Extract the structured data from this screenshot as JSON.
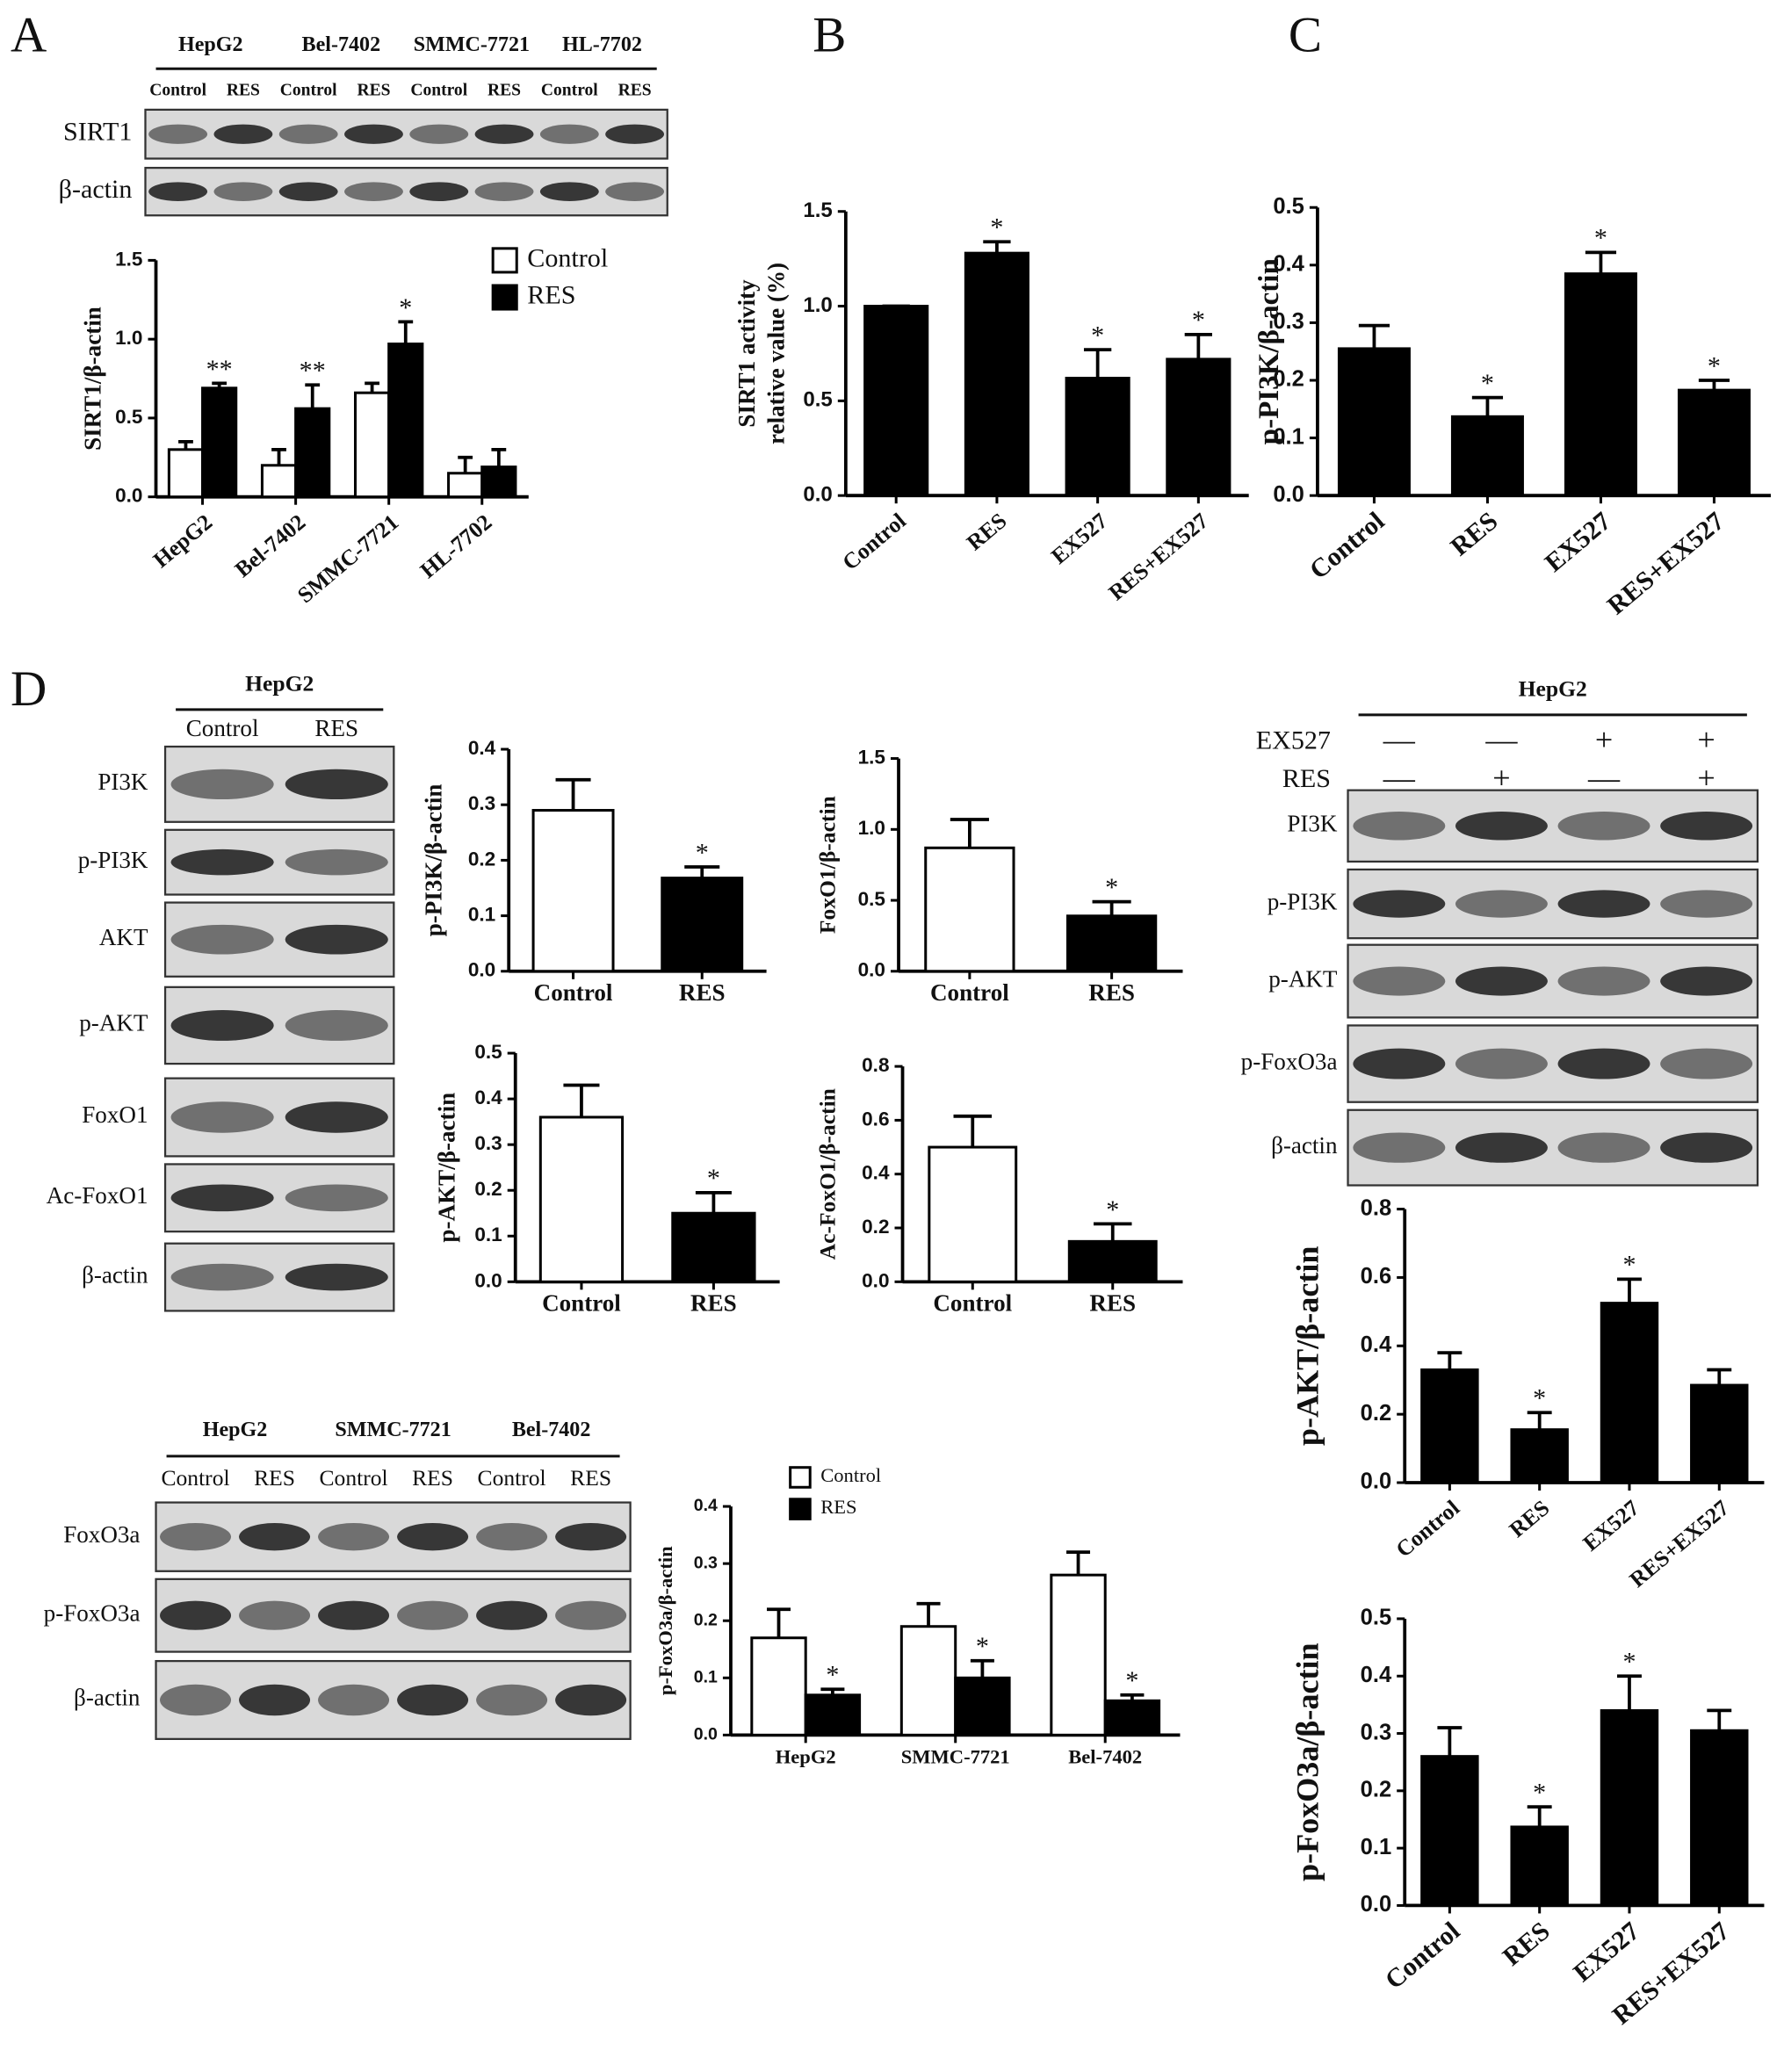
{
  "panels": [
    "A",
    "B",
    "C",
    "D"
  ],
  "blots": [
    {
      "groups": [
        "HepG2",
        "Bel-7402",
        "SMMC-7721",
        "HL-7702"
      ],
      "lanes": [
        "Control",
        "RES",
        "Control",
        "RES",
        "Control",
        "RES",
        "Control",
        "RES"
      ],
      "rows": [
        "SIRT1",
        "β-actin"
      ]
    },
    {
      "groups": [
        "HepG2"
      ],
      "lanes": [
        "Control",
        "RES"
      ],
      "rows": [
        "PI3K",
        "p-PI3K",
        "AKT",
        "p-AKT",
        "FoxO1",
        "Ac-FoxO1",
        "β-actin"
      ]
    },
    {
      "groups": [
        "HepG2",
        "SMMC-7721",
        "Bel-7402"
      ],
      "lanes": [
        "Control",
        "RES",
        "Control",
        "RES",
        "Control",
        "RES"
      ],
      "rows": [
        "FoxO3a",
        "p-FoxO3a",
        "β-actin"
      ]
    },
    {
      "groups": [
        "HepG2"
      ],
      "treatments": [
        {
          "name": "EX527",
          "signs": [
            "—",
            "—",
            "+",
            "+"
          ]
        },
        {
          "name": "RES",
          "signs": [
            "—",
            "+",
            "—",
            "+"
          ]
        }
      ],
      "rows": [
        "PI3K",
        "p-PI3K",
        "p-AKT",
        "p-FoxO3a",
        "β-actin"
      ]
    }
  ],
  "chart_data": [
    {
      "type": "grouped_bar",
      "y_label": "SIRT1/β-actin",
      "categories": [
        "HepG2",
        "Bel-7402",
        "SMMC-7721",
        "HL-7702"
      ],
      "series": [
        {
          "name": "Control",
          "color": "#ffffff",
          "values": [
            0.3,
            0.2,
            0.66,
            0.15
          ],
          "errors": [
            0.05,
            0.1,
            0.06,
            0.1
          ],
          "annotations": [
            null,
            null,
            null,
            null
          ]
        },
        {
          "name": "RES",
          "color": "#000000",
          "values": [
            0.69,
            0.56,
            0.97,
            0.19
          ],
          "errors": [
            0.03,
            0.15,
            0.14,
            0.11
          ],
          "annotations": [
            "**",
            "**",
            "*",
            null
          ]
        }
      ],
      "ylim": [
        0,
        1.5
      ],
      "yticks": [
        {
          "value": 0,
          "label": "0.0"
        },
        0.5,
        {
          "value": 1,
          "label": "1.0"
        },
        1.5
      ],
      "legend": "upper right"
    },
    {
      "type": "bar",
      "y_label": [
        "SIRT1 activity",
        "relative value (%)"
      ],
      "categories": [
        "Control",
        "RES",
        "EX527",
        "RES+EX527"
      ],
      "values": [
        1.0,
        1.28,
        0.62,
        0.72
      ],
      "errors": [
        0,
        0.06,
        0.15,
        0.13
      ],
      "annotations": [
        null,
        "*",
        "*",
        "*"
      ],
      "color": "#000000",
      "ylim": [
        0,
        1.5
      ],
      "yticks": [
        {
          "value": 0,
          "label": "0.0"
        },
        0.5,
        {
          "value": 1,
          "label": "1.0"
        },
        1.5
      ]
    },
    {
      "type": "bar",
      "y_label": "p-PI3K/β-actin",
      "categories": [
        "Control",
        "RES",
        "EX527",
        "RES+EX527"
      ],
      "values": [
        0.255,
        0.137,
        0.385,
        0.183
      ],
      "errors": [
        0.04,
        0.033,
        0.037,
        0.017
      ],
      "annotations": [
        null,
        "*",
        "*",
        "*"
      ],
      "color": "#000000",
      "ylim": [
        0,
        0.5
      ],
      "yticks": [
        {
          "value": 0,
          "label": "0.0"
        },
        0.1,
        0.2,
        0.3,
        0.4,
        0.5
      ]
    },
    {
      "type": "bar",
      "y_label": "p-PI3K/β-actin",
      "categories": [
        "Control",
        "RES"
      ],
      "values": [
        0.29,
        0.168
      ],
      "errors": [
        0.055,
        0.02
      ],
      "annotations": [
        null,
        "*"
      ],
      "colors": [
        "#ffffff",
        "#000000"
      ],
      "ylim": [
        0,
        0.4
      ],
      "yticks": [
        {
          "value": 0,
          "label": "0.0"
        },
        0.1,
        0.2,
        0.3,
        0.4
      ]
    },
    {
      "type": "bar",
      "y_label": "FoxO1/β-actin",
      "categories": [
        "Control",
        "RES"
      ],
      "values": [
        0.87,
        0.39
      ],
      "errors": [
        0.2,
        0.1
      ],
      "annotations": [
        null,
        "*"
      ],
      "colors": [
        "#ffffff",
        "#000000"
      ],
      "ylim": [
        0,
        1.5
      ],
      "yticks": [
        {
          "value": 0,
          "label": "0.0"
        },
        0.5,
        {
          "value": 1,
          "label": "1.0"
        },
        1.5
      ]
    },
    {
      "type": "bar",
      "y_label": "p-AKT/β-actin",
      "categories": [
        "Control",
        "RES"
      ],
      "values": [
        0.36,
        0.15
      ],
      "errors": [
        0.07,
        0.045
      ],
      "annotations": [
        null,
        "*"
      ],
      "colors": [
        "#ffffff",
        "#000000"
      ],
      "ylim": [
        0,
        0.5
      ],
      "yticks": [
        {
          "value": 0,
          "label": "0.0"
        },
        0.1,
        0.2,
        0.3,
        0.4,
        0.5
      ]
    },
    {
      "type": "bar",
      "y_label": "Ac-FoxO1/β-actin",
      "categories": [
        "Control",
        "RES"
      ],
      "values": [
        0.5,
        0.15
      ],
      "errors": [
        0.115,
        0.065
      ],
      "annotations": [
        null,
        "*"
      ],
      "colors": [
        "#ffffff",
        "#000000"
      ],
      "ylim": [
        0,
        0.8
      ],
      "yticks": [
        {
          "value": 0,
          "label": "0.0"
        },
        0.2,
        0.4,
        0.6,
        0.8
      ]
    },
    {
      "type": "grouped_bar",
      "y_label": "p-FoxO3a/β-actin",
      "categories": [
        "HepG2",
        "SMMC-7721",
        "Bel-7402"
      ],
      "series": [
        {
          "name": "Control",
          "color": "#ffffff",
          "values": [
            0.17,
            0.19,
            0.28
          ],
          "errors": [
            0.05,
            0.04,
            0.04
          ],
          "annotations": [
            null,
            null,
            null
          ]
        },
        {
          "name": "RES",
          "color": "#000000",
          "values": [
            0.07,
            0.1,
            0.06
          ],
          "errors": [
            0.01,
            0.03,
            0.01
          ],
          "annotations": [
            "*",
            "*",
            "*"
          ]
        }
      ],
      "ylim": [
        0,
        0.4
      ],
      "yticks": [
        {
          "value": 0,
          "label": "0.0"
        },
        0.1,
        0.2,
        0.3,
        0.4
      ],
      "legend": "upper left"
    },
    {
      "type": "bar",
      "y_label": "p-AKT/β-actin",
      "categories": [
        "Control",
        "RES",
        "EX527",
        "RES+EX527"
      ],
      "values": [
        0.33,
        0.155,
        0.525,
        0.285
      ],
      "errors": [
        0.05,
        0.05,
        0.07,
        0.045
      ],
      "annotations": [
        null,
        "*",
        "*",
        null
      ],
      "color": "#000000",
      "ylim": [
        0,
        0.8
      ],
      "yticks": [
        {
          "value": 0,
          "label": "0.0"
        },
        0.2,
        0.4,
        0.6,
        0.8
      ]
    },
    {
      "type": "bar",
      "y_label": "p-FoxO3a/β-actin",
      "categories": [
        "Control",
        "RES",
        "EX527",
        "RES+EX527"
      ],
      "values": [
        0.26,
        0.137,
        0.34,
        0.305
      ],
      "errors": [
        0.05,
        0.035,
        0.06,
        0.035
      ],
      "annotations": [
        null,
        "*",
        "*",
        null
      ],
      "color": "#000000",
      "ylim": [
        0,
        0.5
      ],
      "yticks": [
        {
          "value": 0,
          "label": "0.0"
        },
        0.1,
        0.2,
        0.3,
        0.4,
        0.5
      ]
    }
  ]
}
